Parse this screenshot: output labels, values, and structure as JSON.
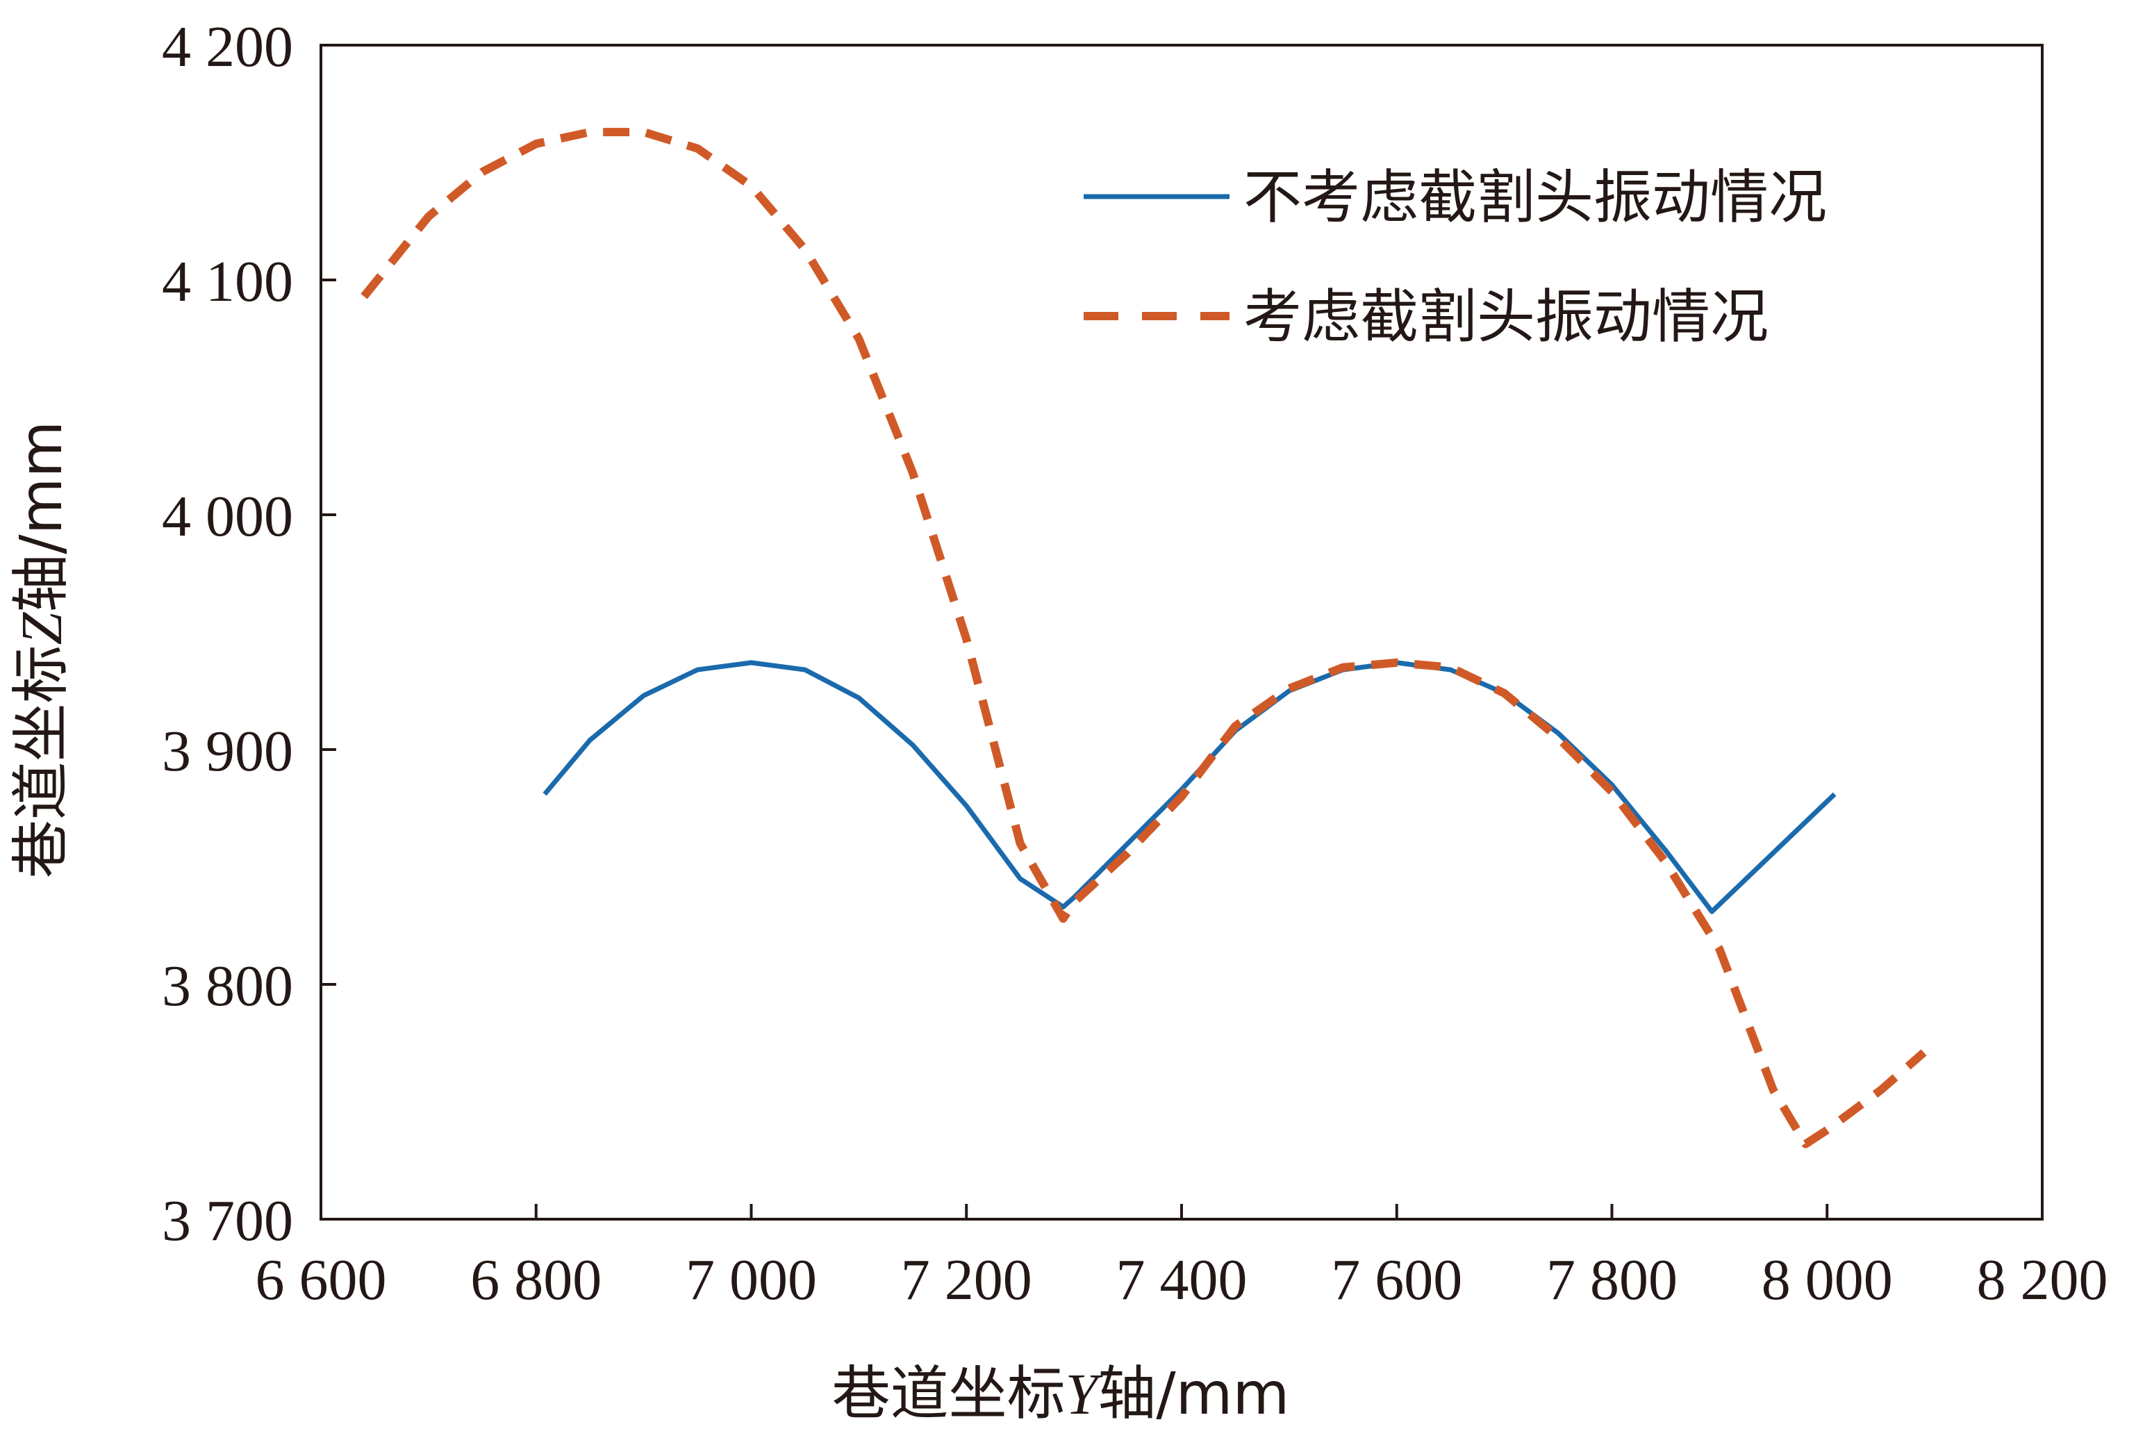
{
  "chart_data": {
    "type": "line",
    "xlabel": {
      "prefix": "巷道坐标",
      "var": "Y",
      "suffix": "轴/mm"
    },
    "ylabel": {
      "prefix": "巷道坐标",
      "var": "Z",
      "suffix": "轴/mm"
    },
    "xlim": [
      6600,
      8200
    ],
    "ylim": [
      3700,
      4200
    ],
    "xticks": [
      6600,
      6800,
      7000,
      7200,
      7400,
      7600,
      7800,
      8000,
      8200
    ],
    "xtick_labels": [
      "6 600",
      "6 800",
      "7 000",
      "7 200",
      "7 400",
      "7 600",
      "7 800",
      "8 000",
      "8 200"
    ],
    "yticks": [
      3700,
      3800,
      3900,
      4000,
      4100,
      4200
    ],
    "ytick_labels": [
      "3 700",
      "3 800",
      "3 900",
      "4 000",
      "4 100",
      "4 200"
    ],
    "grid": false,
    "legend_position": "top-right",
    "series": [
      {
        "name": "不考虑截割头振动情况",
        "color": "#1a6aad",
        "style": "solid",
        "x": [
          6808,
          6850,
          6900,
          6950,
          7000,
          7050,
          7100,
          7150,
          7200,
          7250,
          7290,
          7300,
          7350,
          7400,
          7450,
          7500,
          7550,
          7600,
          7650,
          7700,
          7750,
          7800,
          7850,
          7893,
          7950,
          8007
        ],
        "y": [
          3881,
          3904,
          3923,
          3934,
          3937,
          3934,
          3922,
          3902,
          3876,
          3845,
          3833,
          3837,
          3860,
          3883,
          3908,
          3925,
          3934,
          3937,
          3934,
          3924,
          3907,
          3885,
          3857,
          3831,
          3856,
          3881
        ]
      },
      {
        "name": "考虑截割头振动情况",
        "color": "#d05a27",
        "style": "dashed",
        "x": [
          6640,
          6700,
          6750,
          6800,
          6850,
          6900,
          6950,
          7000,
          7050,
          7100,
          7150,
          7200,
          7250,
          7290,
          7300,
          7350,
          7400,
          7450,
          7500,
          7550,
          7600,
          7650,
          7700,
          7750,
          7800,
          7850,
          7900,
          7950,
          7980,
          8000,
          8050,
          8090
        ],
        "y": [
          4093,
          4127,
          4146,
          4158,
          4163,
          4163,
          4156,
          4140,
          4113,
          4075,
          4018,
          3947,
          3860,
          3828,
          3835,
          3856,
          3880,
          3910,
          3926,
          3935,
          3937,
          3935,
          3924,
          3905,
          3882,
          3852,
          3815,
          3755,
          3732,
          3738,
          3755,
          3771
        ]
      }
    ]
  }
}
